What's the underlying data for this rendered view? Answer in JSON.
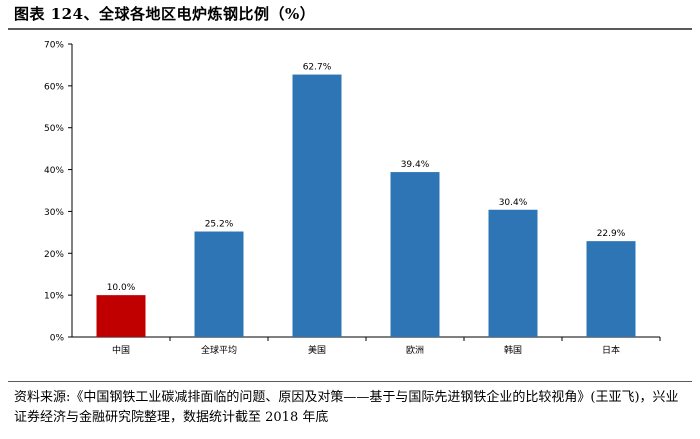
{
  "title": "图表 124、全球各地区电炉炼钢比例（%）",
  "source": "资料来源:《中国钢铁工业碳减排面临的问题、原因及对策——基于与国际先进钢铁企业的比较视角》(王亚飞)，兴业证券经济与金融研究院整理，数据统计截至 2018 年底",
  "chart_data": {
    "type": "bar",
    "categories": [
      "中国",
      "全球平均",
      "美国",
      "欧洲",
      "韩国",
      "日本"
    ],
    "values": [
      10.0,
      25.2,
      62.7,
      39.4,
      30.4,
      22.9
    ],
    "data_labels": [
      "10.0%",
      "25.2%",
      "62.7%",
      "39.4%",
      "30.4%",
      "22.9%"
    ],
    "colors": [
      "#c00000",
      "#2e75b6",
      "#2e75b6",
      "#2e75b6",
      "#2e75b6",
      "#2e75b6"
    ],
    "ylim": [
      0,
      70
    ],
    "yticks": [
      "0%",
      "10%",
      "20%",
      "30%",
      "40%",
      "50%",
      "60%",
      "70%"
    ],
    "grid": false,
    "legend": "none"
  }
}
